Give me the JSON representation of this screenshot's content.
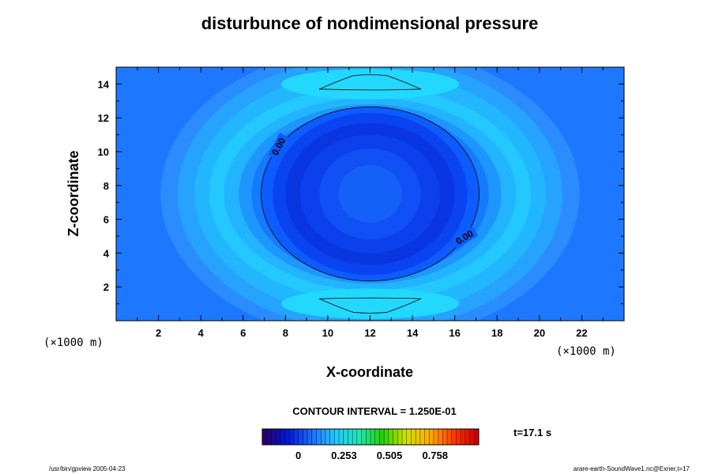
{
  "chart_data": {
    "type": "contour",
    "title": "disturbunce of nondimensional pressure",
    "xlabel": "X-coordinate",
    "ylabel": "Z-coordinate",
    "x_unit": "(×1000 m)",
    "z_unit": "(×1000 m)",
    "xlim": [
      0,
      24
    ],
    "ylim": [
      0,
      15
    ],
    "xticks": [
      "2",
      "4",
      "6",
      "8",
      "10",
      "12",
      "14",
      "16",
      "18",
      "20",
      "22"
    ],
    "yticks": [
      "2",
      "4",
      "6",
      "8",
      "10",
      "12",
      "14"
    ],
    "center": [
      12,
      7.5
    ],
    "zero_contour_label": "0.00",
    "zero_contour_radii": [
      5.15,
      5.15
    ],
    "contour_interval": "CONTOUR INTERVAL = 1.250E-01",
    "colorbar": {
      "ticks": [
        "0",
        "0.253",
        "0.505",
        "0.758"
      ],
      "tick_values": [
        0,
        0.253,
        0.505,
        0.758
      ],
      "range": [
        -0.2,
        1.0
      ],
      "colors": [
        "#2a006e",
        "#0018d8",
        "#1e6cff",
        "#22c8ff",
        "#22e6b8",
        "#22d200",
        "#d2e000",
        "#ffb000",
        "#ff3c00",
        "#d00000"
      ]
    },
    "time_label": "t=17.1 s",
    "footer_left": "/usr/bin/gpview 2005-04-23",
    "footer_right": "arare-earth-SoundWave1.nc@Exner,t=17"
  }
}
